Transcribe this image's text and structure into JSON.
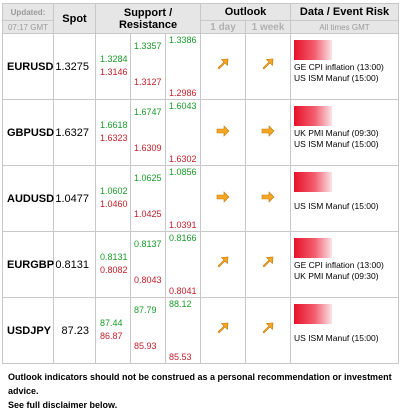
{
  "header": {
    "updated_label": "Updated:",
    "updated_time": "07:17 GMT",
    "spot": "Spot",
    "support_resistance": "Support / Resistance",
    "outlook": "Outlook",
    "outlook_day": "1 day",
    "outlook_week": "1 week",
    "data_event": "Data / Event Risk",
    "times_note": "All times GMT"
  },
  "rows": [
    {
      "pair": "EURUSD",
      "spot": "1.3275",
      "r1": "1.3284",
      "r2": "1.3357",
      "r3": "1.3386",
      "s1": "1.3146",
      "s2": "1.3127",
      "s3": "1.2986",
      "day": "up-right",
      "week": "up-right",
      "events": [
        "GE CPI inflation (13:00)",
        "US ISM Manuf (15:00)"
      ]
    },
    {
      "pair": "GBPUSD",
      "spot": "1.6327",
      "r1": "1.6618",
      "r2": "1.6747",
      "r3": "1.6043",
      "s1": "1.6323",
      "s2": "1.6309",
      "s3": "1.6302",
      "day": "right",
      "week": "right",
      "events": [
        "UK PMI Manuf (09:30)",
        "US ISM Manuf (15:00)"
      ]
    },
    {
      "pair": "AUDUSD",
      "spot": "1.0477",
      "r1": "1.0602",
      "r2": "1.0625",
      "r3": "1.0856",
      "s1": "1.0460",
      "s2": "1.0425",
      "s3": "1.0391",
      "day": "right",
      "week": "right",
      "events": [
        "US ISM Manuf (15:00)"
      ]
    },
    {
      "pair": "EURGBP",
      "spot": "0.8131",
      "r1": "0.8131",
      "r2": "0.8137",
      "r3": "0.8166",
      "s1": "0.8082",
      "s2": "0.8043",
      "s3": "0.8041",
      "day": "up-right",
      "week": "up-right",
      "events": [
        "GE CPI inflation (13:00)",
        "UK PMI Manuf (09:30)"
      ]
    },
    {
      "pair": "USDJPY",
      "spot": "87.23",
      "r1": "87.44",
      "r2": "87.79",
      "r3": "88.12",
      "s1": "86.87",
      "s2": "85.93",
      "s3": "85.53",
      "day": "up-right",
      "week": "up-right",
      "events": [
        "US ISM Manuf (15:00)"
      ]
    }
  ],
  "footer": {
    "line1": "Outlook indicators should not be construed as a personal recommendation or investment advice.",
    "line2": "See full disclaimer below."
  },
  "colors": {
    "resistance": "#1a9a2a",
    "support": "#c0202a",
    "arrow": "#f5a623",
    "risk_bar": "#e8102a",
    "header_bg": "#e6e6e6"
  }
}
